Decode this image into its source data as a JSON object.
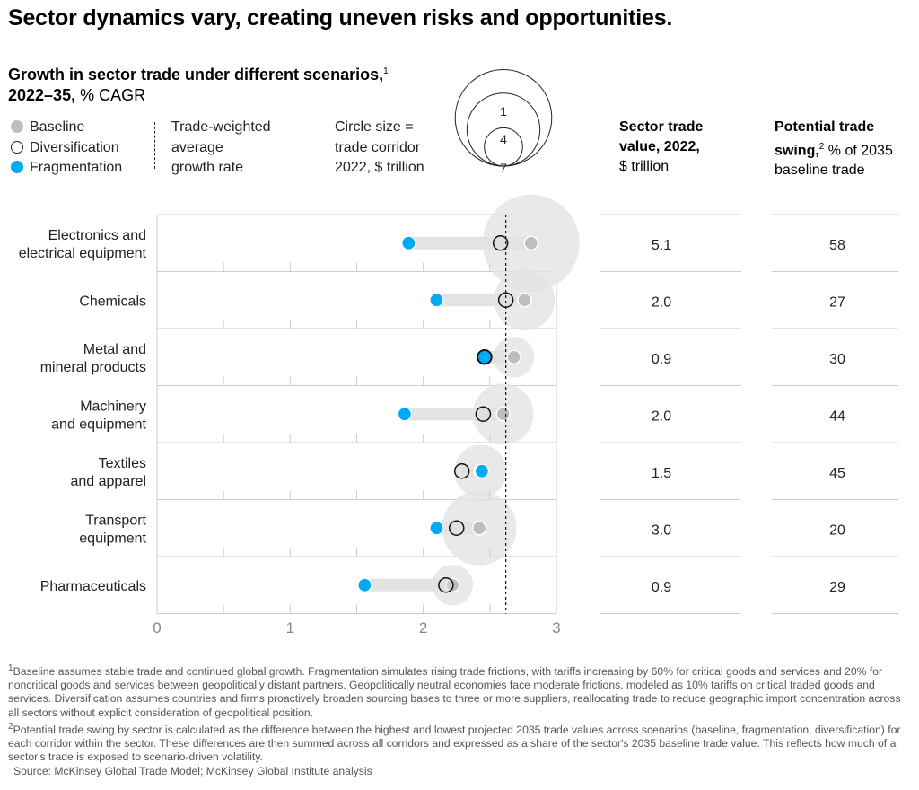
{
  "title": "Sector dynamics vary, creating uneven risks and opportunities.",
  "subtitle": {
    "bold": "Growth in sector trade under different scenarios,",
    "sup": "1",
    "bold2": "2022–35,",
    "rest": " % CAGR"
  },
  "legend": {
    "baseline": "Baseline",
    "diversification": "Diversification",
    "fragmentation": "Fragmentation",
    "avg_line": [
      "Trade-weighted",
      "average",
      "growth rate"
    ],
    "circle_size": [
      "Circle size =",
      "trade corridor",
      "2022, $ trillion"
    ],
    "circle_examples": [
      "1",
      "4",
      "7"
    ]
  },
  "columns": {
    "trade_value": {
      "bold": "Sector trade value, 2022,",
      "rest": "$ trillion"
    },
    "swing": {
      "bold": "Potential trade swing,",
      "sup": "2",
      "rest": " % of 2035 baseline trade"
    }
  },
  "colors": {
    "fragmentation": "#00a9f4",
    "baseline": "#bdbdbd",
    "bubble": "#e3e3e3",
    "bar": "#e3e3e3"
  },
  "chart_data": {
    "type": "dumbbell",
    "xlim": [
      0,
      3
    ],
    "xticks": [
      "0",
      "1",
      "2",
      "3"
    ],
    "average_growth_rate": 2.62,
    "categories": [
      "Electronics and|electrical equipment",
      "Chemicals",
      "Metal and|mineral products",
      "Machinery|and equipment",
      "Textiles|and apparel",
      "Transport|equipment",
      "Pharmaceuticals"
    ],
    "series": [
      {
        "name": "Baseline",
        "values": [
          2.81,
          2.76,
          2.68,
          2.6,
          2.43,
          2.42,
          2.22
        ]
      },
      {
        "name": "Diversification",
        "values": [
          2.58,
          2.62,
          2.46,
          2.45,
          2.29,
          2.25,
          2.17
        ]
      },
      {
        "name": "Fragmentation",
        "values": [
          1.89,
          2.1,
          2.46,
          1.86,
          2.44,
          2.1,
          1.56
        ]
      }
    ],
    "trade_value_2022": [
      "5.1",
      "2.0",
      "0.9",
      "2.0",
      "1.5",
      "3.0",
      "0.9"
    ],
    "potential_swing": [
      "58",
      "27",
      "30",
      "44",
      "45",
      "20",
      "29"
    ]
  },
  "footnotes": [
    "Baseline assumes stable trade and continued global growth. Fragmentation simulates rising trade frictions, with tariffs increasing by 60% for critical goods and services and 20% for noncritical goods and services between geopolitically distant partners. Geopolitically neutral economies face moderate frictions, modeled as 10% tariffs on critical traded goods and services. Diversification assumes countries and firms proactively broaden sourcing bases to three or more suppliers, reallocating trade to reduce geographic import concentration across all sectors without explicit consideration of geopolitical position.",
    "Potential trade swing by sector is calculated as the difference between the highest and lowest projected 2035 trade values across scenarios (baseline, fragmentation, diversification) for each corridor within the sector. These differences are then summed across all corridors and expressed as a share of the sector's 2035 baseline trade value. This reflects how much of a sector's trade is exposed to scenario-driven volatility.",
    "Source: McKinsey Global Trade Model; McKinsey Global Institute analysis"
  ],
  "footnote_marks": [
    "1",
    "2"
  ]
}
